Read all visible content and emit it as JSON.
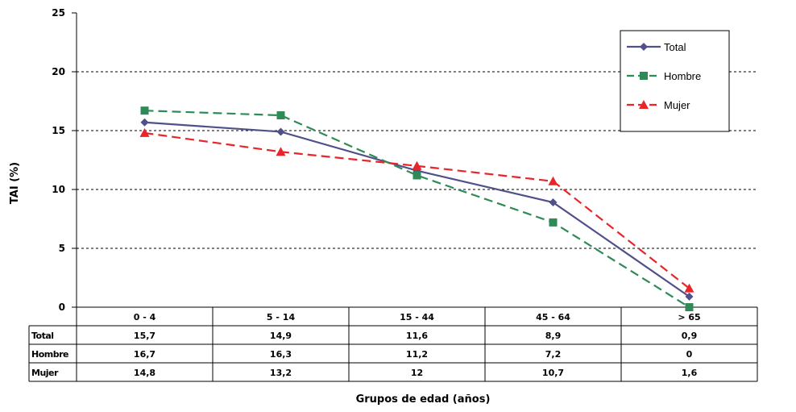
{
  "chart_data": {
    "type": "line",
    "ylabel": "TAI (%)",
    "xlabel": "Grupos de edad (años)",
    "ylim": [
      0,
      25
    ],
    "yticks": [
      0,
      5,
      10,
      15,
      20,
      25
    ],
    "grid": "horizontal dashed",
    "legend_position": "top-right",
    "categories": [
      "0 - 4",
      "5 - 14",
      "15 - 44",
      "45 - 64",
      "> 65"
    ],
    "series": [
      {
        "name": "Total",
        "color": "#50508a",
        "marker": "diamond",
        "dash": "solid",
        "values": [
          15.7,
          14.9,
          11.6,
          8.9,
          0.9
        ],
        "labels": [
          "15,7",
          "14,9",
          "11,6",
          "8,9",
          "0,9"
        ]
      },
      {
        "name": "Hombre",
        "color": "#2e8b57",
        "marker": "square",
        "dash": "dashed",
        "values": [
          16.7,
          16.3,
          11.2,
          7.2,
          0
        ],
        "labels": [
          "16,7",
          "16,3",
          "11,2",
          "7,2",
          "0"
        ]
      },
      {
        "name": "Mujer",
        "color": "#e8262a",
        "marker": "triangle",
        "dash": "dashed",
        "values": [
          14.8,
          13.2,
          12,
          10.7,
          1.6
        ],
        "labels": [
          "14,8",
          "13,2",
          "12",
          "10,7",
          "1,6"
        ]
      }
    ]
  }
}
